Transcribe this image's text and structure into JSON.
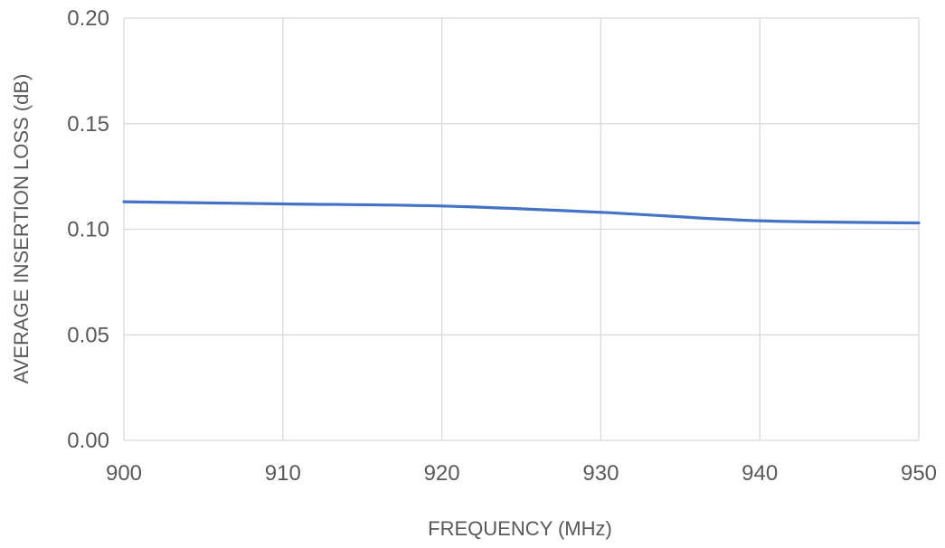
{
  "chart_data": {
    "type": "line",
    "title": "",
    "xlabel": "FREQUENCY (MHz)",
    "ylabel": "AVERAGE INSERTION LOSS (dB)",
    "xlim": [
      900,
      950
    ],
    "ylim": [
      0,
      0.2
    ],
    "grid": true,
    "legend": "none",
    "x_ticks": [
      "900",
      "910",
      "920",
      "930",
      "940",
      "950"
    ],
    "y_ticks": [
      "0.00",
      "0.05",
      "0.10",
      "0.15",
      "0.20"
    ],
    "series": [
      {
        "color": "#4472c4",
        "x": [
          900,
          910,
          920,
          930,
          940,
          950
        ],
        "y": [
          0.113,
          0.112,
          0.111,
          0.108,
          0.104,
          0.103
        ]
      }
    ]
  }
}
